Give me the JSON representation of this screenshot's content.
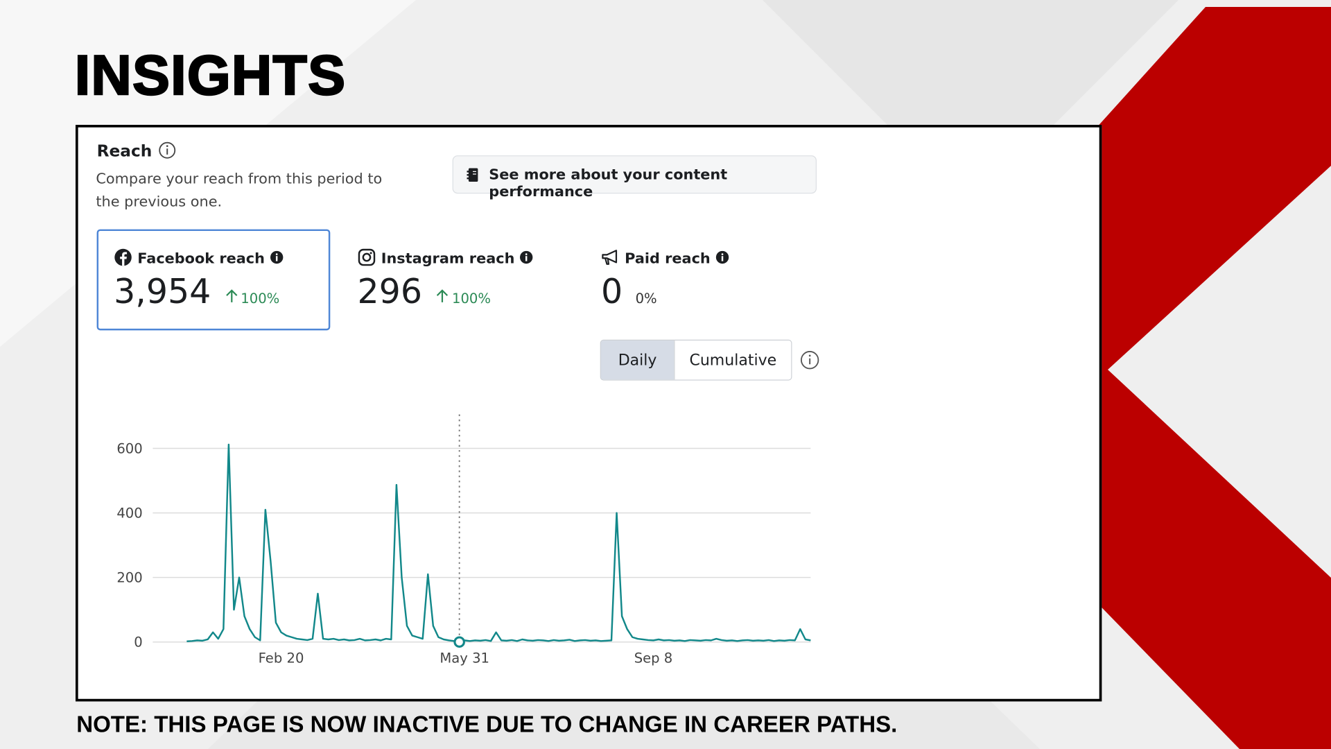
{
  "header": {
    "title": "INSIGHTS"
  },
  "reach": {
    "title": "Reach",
    "description": "Compare your reach from this period to the previous one.",
    "button": "See more about your content performance",
    "metrics": [
      {
        "label": "Facebook reach",
        "value": "3,954",
        "change": "100%"
      },
      {
        "label": "Instagram reach",
        "value": "296",
        "change": "100%"
      },
      {
        "label": "Paid reach",
        "value": "0",
        "change": "0%"
      }
    ],
    "toggle": [
      "Daily",
      "Cumulative"
    ]
  },
  "chart_data": {
    "type": "line",
    "color": "#12888a",
    "categories": [
      null,
      null,
      null,
      null,
      null,
      null,
      null,
      null,
      null,
      null,
      null,
      null,
      null,
      null,
      null,
      null,
      null,
      null,
      "Feb 20",
      null,
      null,
      null,
      null,
      null,
      null,
      null,
      null,
      null,
      null,
      null,
      null,
      null,
      null,
      null,
      null,
      null,
      null,
      null,
      null,
      null,
      null,
      null,
      null,
      null,
      null,
      null,
      null,
      null,
      null,
      null,
      null,
      null,
      null,
      "May 31",
      null,
      null,
      null,
      null,
      null,
      null,
      null,
      null,
      null,
      null,
      null,
      null,
      null,
      null,
      null,
      null,
      null,
      null,
      null,
      null,
      null,
      null,
      null,
      null,
      null,
      null,
      null,
      null,
      null,
      null,
      null,
      null,
      null,
      null,
      null,
      "Sep 8",
      null,
      null,
      null,
      null,
      null,
      null,
      null,
      null,
      null,
      null,
      null,
      null,
      null,
      null,
      null,
      null,
      null,
      null,
      null,
      null,
      null,
      null,
      null,
      null,
      null,
      null,
      null,
      null,
      null,
      null
    ],
    "values": [
      2,
      3,
      5,
      4,
      8,
      30,
      10,
      40,
      612,
      100,
      200,
      80,
      40,
      15,
      5,
      410,
      250,
      60,
      30,
      20,
      15,
      10,
      8,
      6,
      10,
      150,
      10,
      8,
      10,
      6,
      8,
      5,
      6,
      10,
      5,
      6,
      8,
      5,
      10,
      8,
      487,
      200,
      50,
      20,
      15,
      10,
      210,
      50,
      15,
      8,
      5,
      3,
      0,
      5,
      3,
      5,
      4,
      6,
      3,
      30,
      5,
      4,
      6,
      3,
      8,
      5,
      4,
      6,
      5,
      3,
      6,
      4,
      5,
      7,
      3,
      5,
      6,
      4,
      5,
      3,
      4,
      5,
      400,
      80,
      40,
      15,
      10,
      8,
      6,
      5,
      8,
      5,
      6,
      4,
      5,
      3,
      6,
      5,
      4,
      6,
      5,
      10,
      6,
      4,
      5,
      3,
      5,
      6,
      4,
      5,
      4,
      6,
      3,
      5,
      4,
      6,
      5,
      40,
      8,
      5
    ],
    "ylim": [
      0,
      600
    ],
    "yticks": [
      0,
      200,
      400,
      600
    ],
    "grid": true
  },
  "note": "NOTE: THIS PAGE IS NOW INACTIVE DUE TO CHANGE IN CAREER PATHS."
}
